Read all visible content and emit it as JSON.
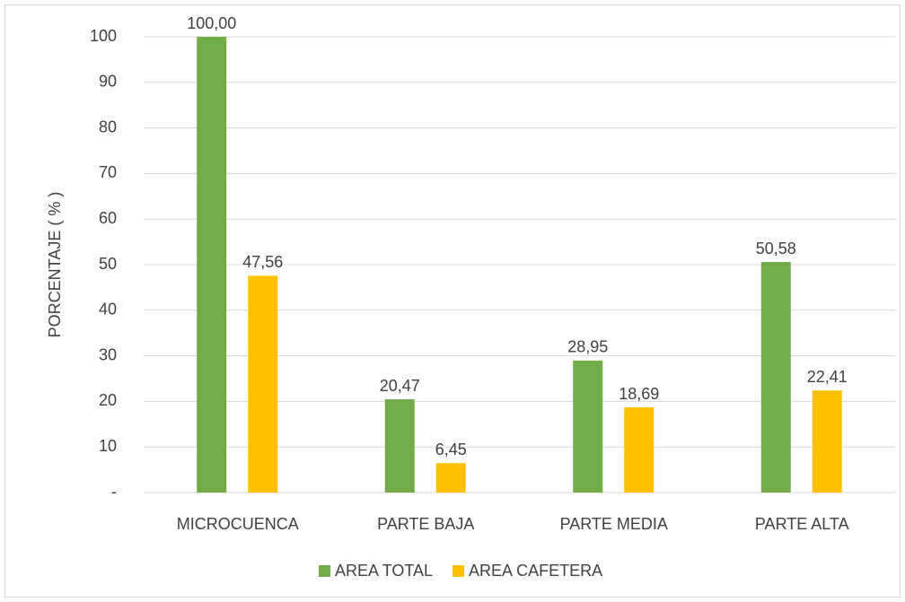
{
  "chart_data": {
    "type": "bar",
    "y_label": "PORCENTAJE ( % )",
    "categories": [
      "MICROCUENCA",
      "PARTE BAJA",
      "PARTE MEDIA",
      "PARTE ALTA"
    ],
    "series": [
      {
        "name": "AREA TOTAL",
        "color": "#70ad47",
        "values": [
          100.0,
          20.47,
          28.95,
          50.58
        ],
        "value_labels": [
          "100,00",
          "20,47",
          "28,95",
          "50,58"
        ]
      },
      {
        "name": "AREA CAFETERA",
        "color": "#ffc000",
        "values": [
          47.56,
          6.45,
          18.69,
          22.41
        ],
        "value_labels": [
          "47,56",
          "6,45",
          "18,69",
          "22,41"
        ]
      }
    ],
    "ylim": [
      0,
      100
    ],
    "yticks": [
      {
        "value": 0,
        "label": "-"
      },
      10,
      20,
      30,
      40,
      50,
      60,
      70,
      80,
      90,
      100
    ],
    "grid": true,
    "legend": "bottom"
  }
}
